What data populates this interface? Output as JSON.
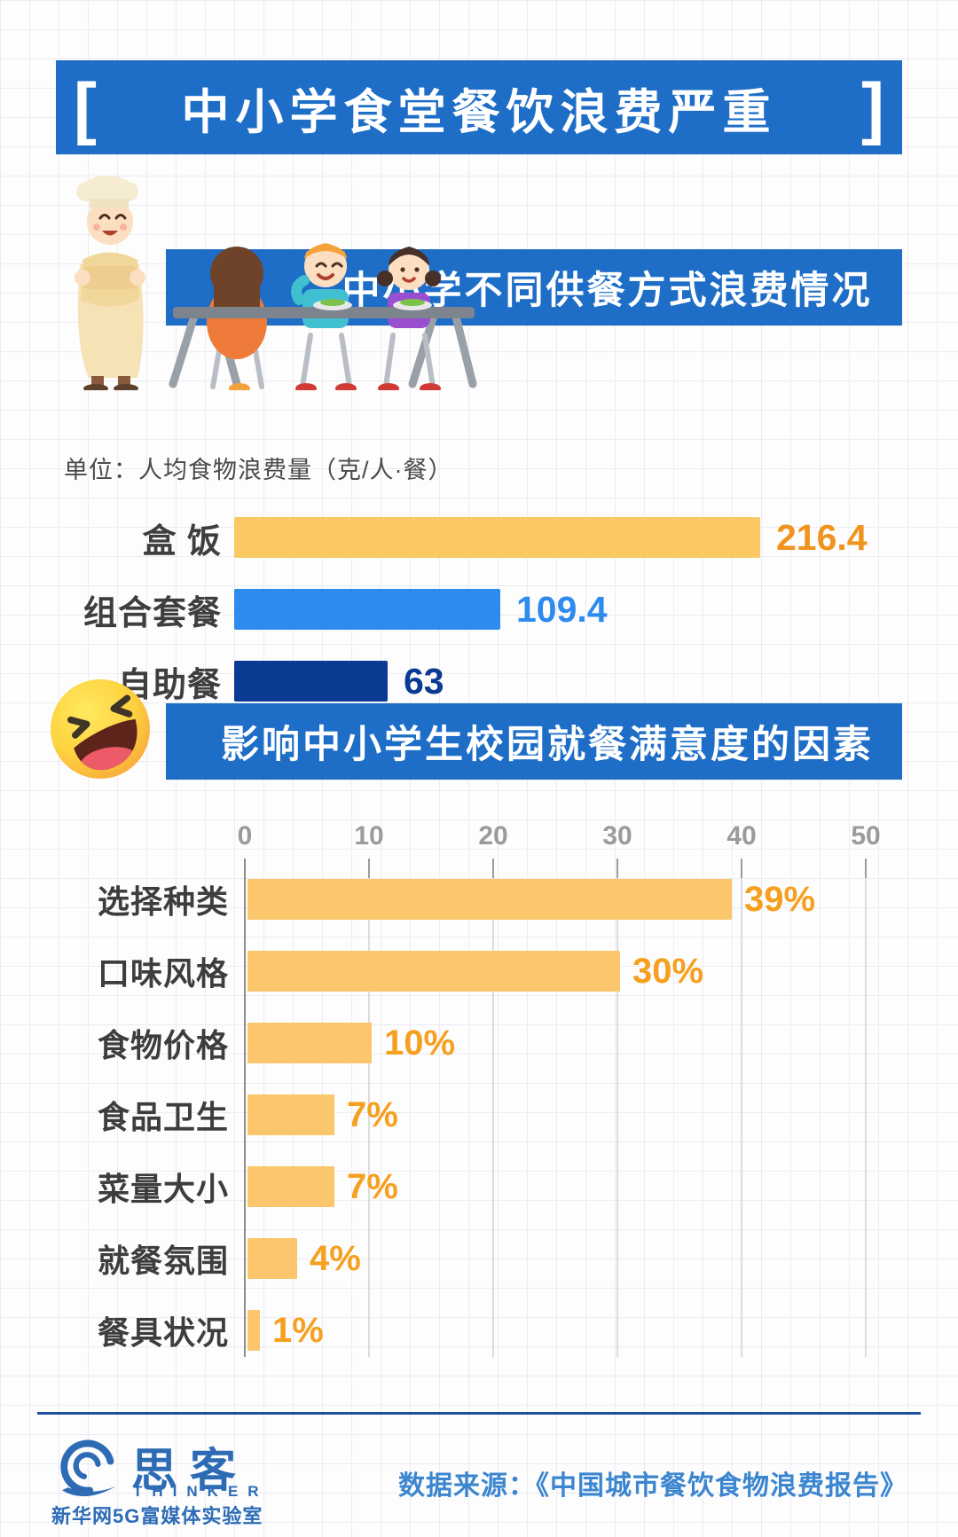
{
  "header": {
    "bracket_left": "[",
    "bracket_right": "]",
    "title": "中小学食堂餐饮浪费严重"
  },
  "section_meal_type": {
    "banner_title": "中小学不同供餐方式浪费情况",
    "unit_label": "单位：人均食物浪费量（克/人·餐）"
  },
  "section_satisfaction": {
    "banner_title": "影响中小学生校园就餐满意度的因素"
  },
  "footer": {
    "logo_cn": "思客",
    "logo_en": "THINKER",
    "logo_sub": "新华网5G富媒体实验室",
    "source": "数据来源：《中国城市餐饮食物浪费报告》"
  },
  "colors": {
    "banner_blue": "#1e6ec8",
    "chart1_bar_yellow": "#fac963",
    "chart1_bar_blue": "#2e8bee",
    "chart1_bar_navy": "#0a3a92",
    "chart1_value_orange": "#f0941d",
    "chart2_bar": "#fbc66c",
    "chart2_value": "#f5a01f",
    "footer_blue": "#2d6cb5",
    "source_blue": "#3c86cf"
  },
  "chart_data": [
    {
      "type": "bar",
      "orientation": "horizontal",
      "title": "中小学不同供餐方式浪费情况",
      "unit": "单位：人均食物浪费量（克/人·餐）",
      "categories": [
        "盒 饭",
        "组合套餐",
        "自助餐"
      ],
      "values": [
        216.4,
        109.4,
        63
      ],
      "bar_colors": [
        "#fac963",
        "#2e8bee",
        "#0a3a92"
      ],
      "value_colors": [
        "#f0941d",
        "#2e8bee",
        "#0a3a92"
      ],
      "xlim": [
        0,
        216.4
      ],
      "grid": false,
      "value_labels": [
        "216.4",
        "109.4",
        "63"
      ]
    },
    {
      "type": "bar",
      "orientation": "horizontal",
      "title": "影响中小学生校园就餐满意度的因素",
      "categories": [
        "选择种类",
        "口味风格",
        "食物价格",
        "食品卫生",
        "菜量大小",
        "就餐氛围",
        "餐具状况"
      ],
      "values": [
        39,
        30,
        10,
        7,
        7,
        4,
        1
      ],
      "value_suffix": "%",
      "axis_ticks": [
        0,
        10,
        20,
        30,
        40,
        50
      ],
      "xlim": [
        0,
        50
      ],
      "bar_color": "#fbc66c",
      "value_color": "#f5a01f",
      "grid": true,
      "value_labels": [
        "39%",
        "30%",
        "10%",
        "7%",
        "7%",
        "4%",
        "1%"
      ]
    }
  ]
}
